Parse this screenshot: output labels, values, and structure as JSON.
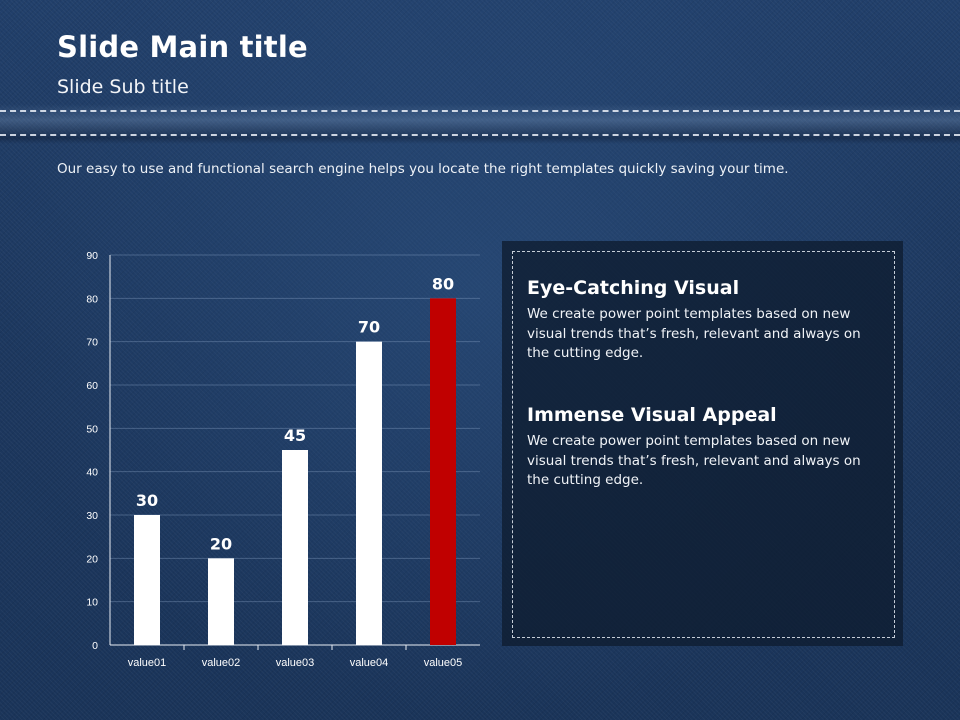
{
  "slide": {
    "title": "Slide Main title",
    "subtitle": "Slide Sub title",
    "description": "Our easy to use and functional search engine helps you locate the right templates quickly saving your time."
  },
  "panel": {
    "items": [
      {
        "title": "Eye-Catching Visual",
        "text": "We create power point templates based on new visual trends that’s fresh, relevant and always on the cutting edge."
      },
      {
        "title": "Immense Visual Appeal",
        "text": "We create power point templates based on new visual trends that’s fresh, relevant and always on the cutting edge."
      }
    ]
  },
  "colors": {
    "background": "#1f3a63",
    "bar_default": "#ffffff",
    "bar_highlight": "#c00000"
  },
  "chart_data": {
    "type": "bar",
    "categories": [
      "value01",
      "value02",
      "value03",
      "value04",
      "value05"
    ],
    "values": [
      30,
      20,
      45,
      70,
      80
    ],
    "ylim": [
      0,
      90
    ],
    "yticks": [
      0,
      10,
      20,
      30,
      40,
      50,
      60,
      70,
      80,
      90
    ],
    "data_labels": true,
    "highlight_index": 4,
    "grid": true,
    "legend": "none"
  }
}
